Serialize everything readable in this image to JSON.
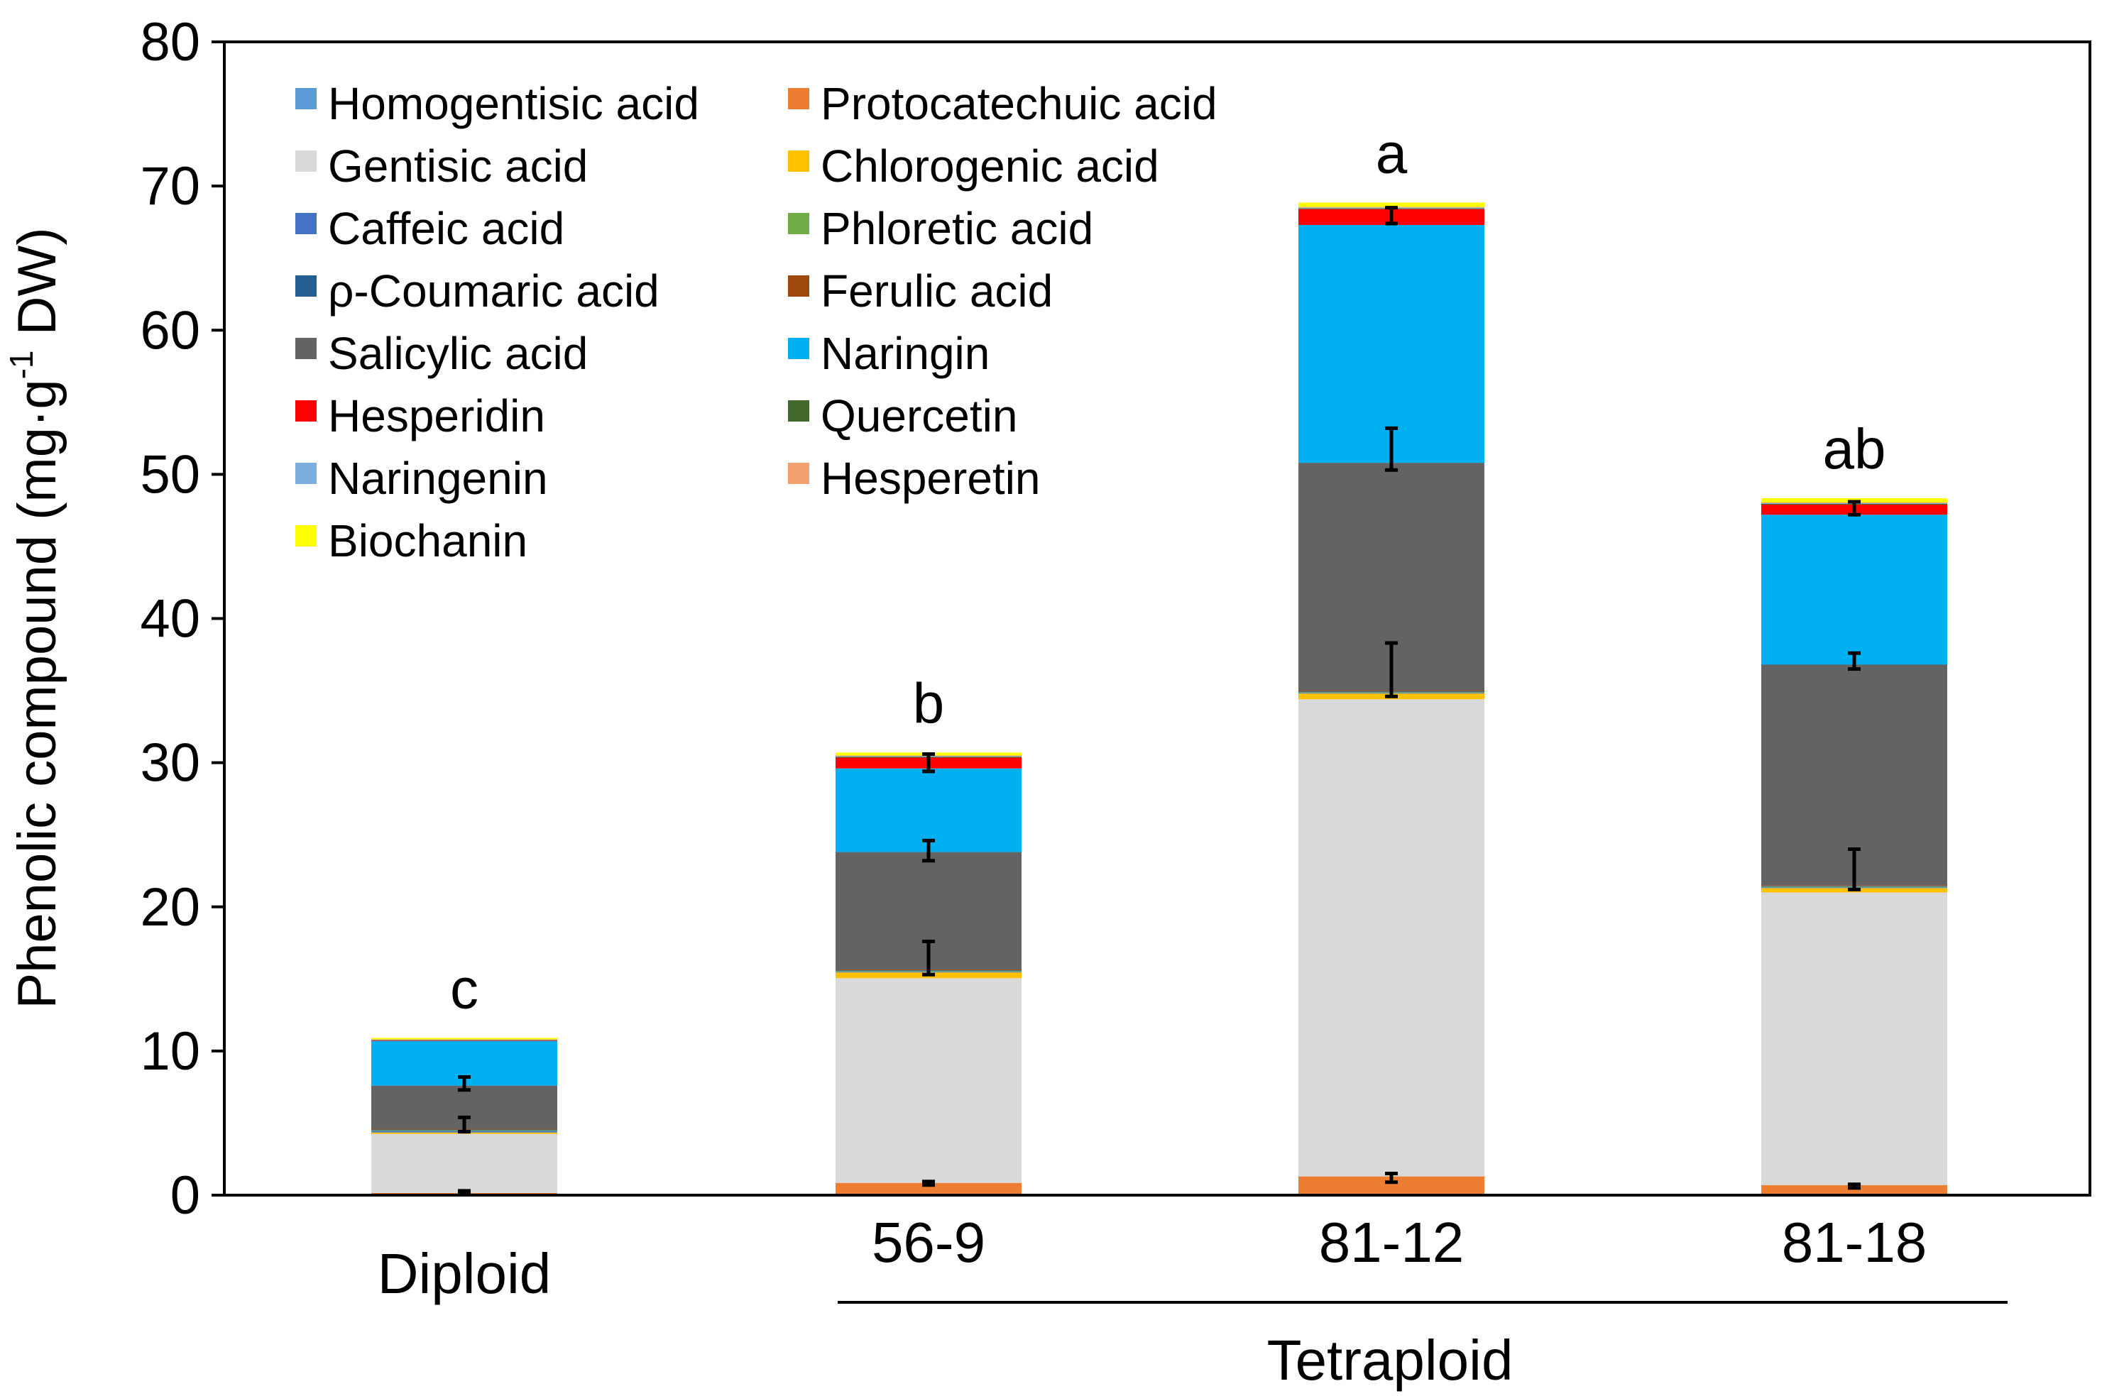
{
  "chart_data": {
    "type": "bar",
    "stacked": true,
    "ylabel_main": "Phenolic compound (mg·g",
    "ylabel_sup": "-1",
    "ylabel_end": " DW)",
    "ylim": [
      0,
      80
    ],
    "yticks": [
      "0",
      "10",
      "20",
      "30",
      "40",
      "50",
      "60",
      "70",
      "80"
    ],
    "categories": [
      "Diploid",
      "56-9",
      "81-12",
      "81-18"
    ],
    "group_label": "Tetraploid",
    "significance": [
      "c",
      "b",
      "a",
      "ab"
    ],
    "legend_position": "top-left",
    "series": [
      {
        "name": "Homogentisic acid",
        "color": "#5b9bd5",
        "values": [
          0.05,
          0.1,
          0.1,
          0.1
        ]
      },
      {
        "name": "Protocatechuic acid",
        "color": "#ed7d31",
        "values": [
          0.1,
          0.75,
          1.2,
          0.6
        ]
      },
      {
        "name": "Gentisic acid",
        "color": "#d9d9d9",
        "values": [
          4.1,
          14.2,
          33.1,
          20.3
        ]
      },
      {
        "name": "Chlorogenic acid",
        "color": "#ffc000",
        "values": [
          0.1,
          0.4,
          0.4,
          0.3
        ]
      },
      {
        "name": "Caffeic acid",
        "color": "#4472c4",
        "values": [
          0.1,
          0.05,
          0.05,
          0.05
        ]
      },
      {
        "name": "Phloretic acid",
        "color": "#70ad47",
        "values": [
          0.05,
          0.05,
          0.05,
          0.05
        ]
      },
      {
        "name": "ρ-Coumaric acid",
        "color": "#255e91",
        "values": [
          0.05,
          0.05,
          0.05,
          0.05
        ]
      },
      {
        "name": "Ferulic acid",
        "color": "#9e480e",
        "values": [
          0.05,
          0.05,
          0.05,
          0.05
        ]
      },
      {
        "name": "Salicylic acid",
        "color": "#636363",
        "values": [
          3.0,
          8.15,
          15.8,
          15.3
        ]
      },
      {
        "name": "Naringin",
        "color": "#00b0f0",
        "values": [
          3.1,
          5.8,
          16.5,
          10.4
        ]
      },
      {
        "name": "Hesperidin",
        "color": "#ff0000",
        "values": [
          0.05,
          0.75,
          1.1,
          0.7
        ]
      },
      {
        "name": "Quercetin",
        "color": "#43682b",
        "values": [
          0.02,
          0.05,
          0.05,
          0.05
        ]
      },
      {
        "name": "Naringenin",
        "color": "#7cafdd",
        "values": [
          0.02,
          0.05,
          0.05,
          0.05
        ]
      },
      {
        "name": "Hesperetin",
        "color": "#f4a16f",
        "values": [
          0.02,
          0.05,
          0.05,
          0.05
        ]
      },
      {
        "name": "Biochanin",
        "color": "#ffff00",
        "values": [
          0.1,
          0.2,
          0.3,
          0.3
        ]
      }
    ],
    "error_bars": [
      {
        "category": 0,
        "y": 0.2,
        "low": 0.1,
        "high": 0.3
      },
      {
        "category": 0,
        "y": 4.8,
        "low": 4.4,
        "high": 5.4
      },
      {
        "category": 0,
        "y": 7.6,
        "low": 7.3,
        "high": 8.2
      },
      {
        "category": 1,
        "y": 0.8,
        "low": 0.7,
        "high": 0.95
      },
      {
        "category": 1,
        "y": 15.6,
        "low": 15.3,
        "high": 17.6
      },
      {
        "category": 1,
        "y": 23.9,
        "low": 23.2,
        "high": 24.6
      },
      {
        "category": 1,
        "y": 29.8,
        "low": 29.4,
        "high": 30.6
      },
      {
        "category": 2,
        "y": 1.2,
        "low": 0.9,
        "high": 1.5
      },
      {
        "category": 2,
        "y": 34.9,
        "low": 34.6,
        "high": 38.3
      },
      {
        "category": 2,
        "y": 50.7,
        "low": 50.3,
        "high": 53.2
      },
      {
        "category": 2,
        "y": 67.9,
        "low": 67.4,
        "high": 68.5
      },
      {
        "category": 3,
        "y": 0.6,
        "low": 0.5,
        "high": 0.75
      },
      {
        "category": 3,
        "y": 21.5,
        "low": 21.2,
        "high": 24.0
      },
      {
        "category": 3,
        "y": 36.8,
        "low": 36.5,
        "high": 37.6
      },
      {
        "category": 3,
        "y": 47.6,
        "low": 47.2,
        "high": 48.1
      }
    ]
  }
}
